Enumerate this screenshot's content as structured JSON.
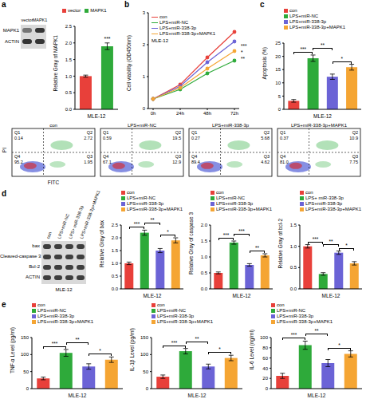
{
  "chart_data": [
    {
      "type": "bar",
      "y_label": "Relative Gray of MAPK1",
      "x_label": "MLE-12",
      "categories": [
        "vector",
        "MAPK1"
      ],
      "values": [
        1.0,
        1.9
      ],
      "errors": [
        0.03,
        0.1
      ],
      "colors": [
        "#e8403a",
        "#2eaa3a"
      ],
      "ylim": [
        0,
        2.5
      ],
      "yticks": [
        {
          "value": 0,
          "label": "0.0"
        },
        {
          "value": 0.5,
          "label": "0.5"
        },
        {
          "value": 1,
          "label": "1.0"
        },
        {
          "value": 1.5,
          "label": "1.5"
        },
        {
          "value": 2,
          "label": "2.0"
        },
        {
          "value": 2.5,
          "label": "2.5"
        }
      ],
      "legend": "top",
      "tick_labels": "y",
      "annotations": [
        {
          "category": 1,
          "label": "***"
        }
      ]
    },
    {
      "type": "line",
      "y_label": "Cell viability (OD450nm)",
      "annotation": "MLE-12",
      "categories": [
        "0h",
        "24h",
        "48h",
        "72h"
      ],
      "series": [
        {
          "name": "con",
          "color": "#e8403a",
          "values": [
            0.3,
            0.75,
            1.6,
            2.4
          ]
        },
        {
          "name": "LPS+miR-NC",
          "color": "#2eaa3a",
          "values": [
            0.3,
            0.6,
            1.1,
            1.5
          ]
        },
        {
          "name": "LPS+miR-338-3p",
          "color": "#6b63d6",
          "values": [
            0.3,
            0.7,
            1.45,
            2.1
          ]
        },
        {
          "name": "LPS+miR-338-3p+MAPK1",
          "color": "#f5a533",
          "values": [
            0.3,
            0.65,
            1.25,
            1.8
          ]
        }
      ],
      "ylim": [
        0,
        3
      ],
      "yticks": [
        0,
        1,
        2,
        3
      ],
      "legend": "top-left",
      "marker": "circle",
      "significance": [
        {
          "from": 0,
          "to": 1,
          "label": "***"
        },
        {
          "from": 1,
          "to": 2,
          "label": "**"
        },
        {
          "from": 2,
          "to": 3,
          "label": "*"
        }
      ]
    },
    {
      "type": "bar",
      "y_label": "Apoptosis (%)",
      "x_label": "MLE-12",
      "categories": [
        "con",
        "LPS+miR-NC",
        "LPS+miR-338-3p",
        "LPS+miR-338-3p+MAPK1"
      ],
      "values": [
        3.2,
        19.3,
        12.3,
        15.9
      ],
      "errors": [
        0.5,
        1.2,
        1.0,
        1.1
      ],
      "colors": [
        "#e8403a",
        "#2eaa3a",
        "#6b63d6",
        "#f5a533"
      ],
      "ylim": [
        0,
        25
      ],
      "yticks": [
        0,
        5,
        10,
        15,
        20,
        25
      ],
      "legend": "top-left",
      "tick_labels": "y",
      "significance": [
        {
          "from": 0,
          "to": 1,
          "label": "***"
        },
        {
          "from": 1,
          "to": 2,
          "label": "**"
        },
        {
          "from": 2,
          "to": 3,
          "label": "*"
        }
      ]
    },
    {
      "type": "bar",
      "y_label": "Relative Gray of bax",
      "x_label": "MLE-12",
      "categories": [
        "con",
        "LPS+miR-NC",
        "LPS+miR-338-3p",
        "LPS+miR-338-3p+MAPK1"
      ],
      "values": [
        1.0,
        2.2,
        1.5,
        1.9
      ],
      "errors": [
        0.05,
        0.1,
        0.08,
        0.1
      ],
      "colors": [
        "#e8403a",
        "#2eaa3a",
        "#6b63d6",
        "#f5a533"
      ],
      "ylim": [
        0,
        2.5
      ],
      "yticks": [
        {
          "value": 0,
          "label": "0.0"
        },
        {
          "value": 0.5,
          "label": "0.5"
        },
        {
          "value": 1,
          "label": "1.0"
        },
        {
          "value": 1.5,
          "label": "1.5"
        },
        {
          "value": 2,
          "label": "2.0"
        },
        {
          "value": 2.5,
          "label": "2.5"
        }
      ],
      "legend": "top-left",
      "tick_labels": "y",
      "significance": [
        {
          "from": 0,
          "to": 1,
          "label": "***"
        },
        {
          "from": 1,
          "to": 2,
          "label": "**"
        },
        {
          "from": 2,
          "to": 3,
          "label": "*"
        }
      ]
    },
    {
      "type": "bar",
      "y_label": "Relative Gray of caspase 3",
      "x_label": "MLE-12",
      "categories": [
        "con",
        "LPS+miR-NC",
        "LPS+miR-338-3p",
        "LPS+miR-338-3p+MAPK1"
      ],
      "values": [
        0.5,
        1.45,
        0.75,
        1.05
      ],
      "errors": [
        0.03,
        0.05,
        0.04,
        0.05
      ],
      "colors": [
        "#e8403a",
        "#2eaa3a",
        "#6b63d6",
        "#f5a533"
      ],
      "ylim": [
        0,
        2
      ],
      "yticks": [
        {
          "value": 0,
          "label": "0.0"
        },
        {
          "value": 0.5,
          "label": "0.5"
        },
        {
          "value": 1,
          "label": "1.0"
        },
        {
          "value": 1.5,
          "label": "1.5"
        },
        {
          "value": 2,
          "label": "2.0"
        }
      ],
      "legend": "top-left",
      "tick_labels": "y",
      "significance": [
        {
          "from": 0,
          "to": 1,
          "label": "***"
        },
        {
          "from": 1,
          "to": 2,
          "label": "***"
        },
        {
          "from": 2,
          "to": 3,
          "label": "**"
        }
      ]
    },
    {
      "type": "bar",
      "y_label": "Relative Gray of bcl-2",
      "x_label": "MLE-12",
      "categories": [
        "con",
        "LPS+ miR-338-3p",
        "LPS+miR-338-3p",
        "LPS+miR-338-3p+MAPK1"
      ],
      "values": [
        1.0,
        0.35,
        0.85,
        0.6
      ],
      "errors": [
        0.04,
        0.03,
        0.04,
        0.04
      ],
      "colors": [
        "#e8403a",
        "#2eaa3a",
        "#6b63d6",
        "#f5a533"
      ],
      "ylim": [
        0,
        1.5
      ],
      "yticks": [
        {
          "value": 0,
          "label": "0.0"
        },
        {
          "value": 0.5,
          "label": "0.5"
        },
        {
          "value": 1,
          "label": "1.0"
        },
        {
          "value": 1.5,
          "label": "1.5"
        }
      ],
      "legend": "top-left",
      "tick_labels": "y",
      "significance": [
        {
          "from": 0,
          "to": 1,
          "label": "***"
        },
        {
          "from": 1,
          "to": 2,
          "label": "**"
        },
        {
          "from": 2,
          "to": 3,
          "label": "*"
        }
      ]
    },
    {
      "type": "bar",
      "y_label": "TNF-α Level (pg/ml)",
      "x_label": "MLE-12",
      "categories": [
        "con",
        "LPS+miR-NC",
        "LPS+miR-338-3p",
        "LPS+miR-338-3p+MAPK1"
      ],
      "values": [
        30,
        105,
        65,
        85
      ],
      "errors": [
        4,
        10,
        8,
        8
      ],
      "colors": [
        "#e8403a",
        "#2eaa3a",
        "#6b63d6",
        "#f5a533"
      ],
      "ylim": [
        0,
        150
      ],
      "yticks": [
        0,
        50,
        100,
        150
      ],
      "legend": "top-left",
      "tick_labels": "y",
      "significance": [
        {
          "from": 0,
          "to": 1,
          "label": "***"
        },
        {
          "from": 1,
          "to": 2,
          "label": "**"
        },
        {
          "from": 2,
          "to": 3,
          "label": "*"
        }
      ]
    },
    {
      "type": "bar",
      "y_label": "IL-1β Level (pg/ml)",
      "x_label": "MLE-12",
      "categories": [
        "con",
        "LPS+miR-NC",
        "LPS+miR-338-3p",
        "LPS+miR-338-3p+MAPK1"
      ],
      "values": [
        35,
        110,
        65,
        90
      ],
      "errors": [
        5,
        8,
        7,
        8
      ],
      "colors": [
        "#e8403a",
        "#2eaa3a",
        "#6b63d6",
        "#f5a533"
      ],
      "ylim": [
        0,
        150
      ],
      "yticks": [
        0,
        50,
        100,
        150
      ],
      "legend": "top-left",
      "tick_labels": "y",
      "significance": [
        {
          "from": 0,
          "to": 1,
          "label": "***"
        },
        {
          "from": 1,
          "to": 2,
          "label": "**"
        },
        {
          "from": 2,
          "to": 3,
          "label": "*"
        }
      ]
    },
    {
      "type": "bar",
      "y_label": "IL-6 Level (ng/ml)",
      "x_label": "MLE-12",
      "categories": [
        "con",
        "LPS+miR-NC",
        "LPS+miR-338-3p",
        "LPS+miR-338-3p+MAPK1"
      ],
      "values": [
        25,
        85,
        50,
        68
      ],
      "errors": [
        5,
        8,
        7,
        6
      ],
      "colors": [
        "#e8403a",
        "#2eaa3a",
        "#6b63d6",
        "#f5a533"
      ],
      "ylim": [
        0,
        100
      ],
      "yticks": [
        0,
        20,
        40,
        60,
        80,
        100
      ],
      "legend": "top-left",
      "tick_labels": "y",
      "significance": [
        {
          "from": 0,
          "to": 1,
          "label": "***"
        },
        {
          "from": 1,
          "to": 2,
          "label": "**"
        },
        {
          "from": 2,
          "to": 3,
          "label": "*"
        }
      ]
    }
  ],
  "figure": {
    "letters": [
      "a",
      "b",
      "c",
      "d",
      "e"
    ],
    "blot_a": {
      "lanes": [
        "vector",
        "MAPK1"
      ],
      "rows": [
        "MAPK1",
        "ACTIN"
      ]
    },
    "blot_d": {
      "lanes": [
        "con",
        "LPS+miR-NC",
        "LPS+ miR-338-3p",
        "LPS+miR-338-3p+MAPK1"
      ],
      "rows": [
        "bax",
        "Cleaved-caspase 3",
        "Bcl-2",
        "ACTIN"
      ],
      "x_label": "MLE-12"
    },
    "flow": {
      "y_label": "PI",
      "x_label": "FITC",
      "plots": [
        {
          "title": "con",
          "quadrants": [
            {
              "name": "Q1",
              "value": "0.14"
            },
            {
              "name": "Q2",
              "value": "2.72"
            },
            {
              "name": "Q3",
              "value": "1.95"
            },
            {
              "name": "Q4",
              "value": "95.2"
            }
          ]
        },
        {
          "title": "LPS+miR-NC",
          "quadrants": [
            {
              "name": "Q1",
              "value": "0.59"
            },
            {
              "name": "Q2",
              "value": "19.5"
            },
            {
              "name": "Q3",
              "value": "12.9"
            },
            {
              "name": "Q4",
              "value": "67.1"
            }
          ]
        },
        {
          "title": "LPS+miR-338-3p",
          "quadrants": [
            {
              "name": "Q1",
              "value": "0.27"
            },
            {
              "name": "Q2",
              "value": "5.68"
            },
            {
              "name": "Q3",
              "value": "4.62"
            },
            {
              "name": "Q4",
              "value": "89.4"
            }
          ]
        },
        {
          "title": "LPS+miR-338-3p+MAPK1",
          "quadrants": [
            {
              "name": "Q1",
              "value": "0.37"
            },
            {
              "name": "Q2",
              "value": "10.9"
            },
            {
              "name": "Q3",
              "value": "7.75"
            },
            {
              "name": "Q4",
              "value": "81.0"
            }
          ]
        }
      ]
    }
  }
}
